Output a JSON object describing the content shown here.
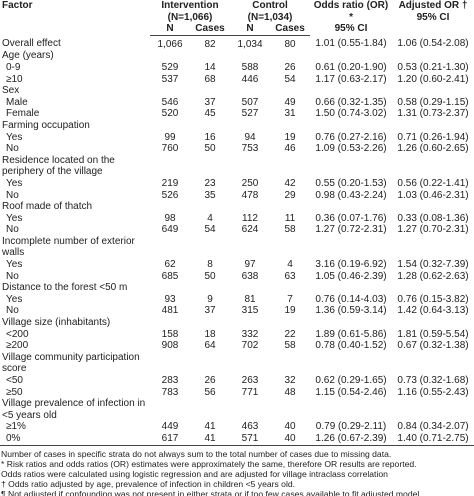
{
  "header": {
    "factor": "Factor",
    "intervention": "Intervention",
    "intervention_n": "(N=1,066)",
    "control": "Control",
    "control_n": "(N=1,034)",
    "or": "Odds ratio (OR) *",
    "or_ci": "95% CI",
    "adj": "Adjusted OR †",
    "adj_ci": "95% CI",
    "sub": [
      "N",
      "Cases",
      "N",
      "Cases"
    ]
  },
  "rows": [
    {
      "label": "Overall effect",
      "cells": [
        "1,066",
        "82",
        "1,034",
        "80",
        "1.01 (0.55-1.84)",
        "1.06 (0.54-2.08)"
      ]
    },
    {
      "label": "Age (years)"
    },
    {
      "label": "0-9",
      "cells": [
        "529",
        "14",
        "588",
        "26",
        "0.61 (0.20-1.90)",
        "0.53 (0.21-1.30)"
      ]
    },
    {
      "label": "≥10",
      "cells": [
        "537",
        "68",
        "446",
        "54",
        "1.17 (0.63-2.17)",
        "1.20 (0.60-2.41)"
      ]
    },
    {
      "label": "Sex"
    },
    {
      "label": "Male",
      "cells": [
        "546",
        "37",
        "507",
        "49",
        "0.66 (0.32-1.35)",
        "0.58 (0.29-1.15)"
      ]
    },
    {
      "label": "Female",
      "cells": [
        "520",
        "45",
        "527",
        "31",
        "1.50 (0.74-3.02)",
        "1.31 (0.73-2.37)"
      ]
    },
    {
      "label": "Farming occupation"
    },
    {
      "label": "Yes",
      "cells": [
        "99",
        "16",
        "94",
        "19",
        "0.76 (0.27-2.16)",
        "0.71 (0.26-1.94)"
      ]
    },
    {
      "label": "No",
      "cells": [
        "760",
        "50",
        "753",
        "46",
        "1.09 (0.53-2.26)",
        "1.26 (0.60-2.65)"
      ]
    },
    {
      "label": "Residence located on the periphery of the village"
    },
    {
      "label": "Yes",
      "cells": [
        "219",
        "23",
        "250",
        "42",
        "0.55 (0.20-1.53)",
        "0.56 (0.22-1.41)"
      ]
    },
    {
      "label": "No",
      "cells": [
        "526",
        "35",
        "478",
        "29",
        "0.98 (0.43-2.24)",
        "1.03 (0.46-2.31)"
      ]
    },
    {
      "label": "Roof made of thatch"
    },
    {
      "label": "Yes",
      "cells": [
        "98",
        "4",
        "112",
        "11",
        "0.36 (0.07-1.76)",
        "0.33 (0.08-1.36)"
      ]
    },
    {
      "label": "No",
      "cells": [
        "649",
        "54",
        "624",
        "58",
        "1.27 (0.72-2.31)",
        "1.27 (0.70-2.31)"
      ]
    },
    {
      "label": "Incomplete number of exterior walls"
    },
    {
      "label": "Yes",
      "cells": [
        "62",
        "8",
        "97",
        "4",
        "3.16 (0.19-6.92)",
        "1.54 (0.32-7.39)"
      ]
    },
    {
      "label": "No",
      "cells": [
        "685",
        "50",
        "638",
        "63",
        "1.05 (0.46-2.39)",
        "1.28 (0.62-2.63)"
      ]
    },
    {
      "label": "Distance to the forest <50 m"
    },
    {
      "label": "Yes",
      "cells": [
        "93",
        "9",
        "81",
        "7",
        "0.76 (0.14-4.03)",
        "0.76 (0.15-3.82)"
      ]
    },
    {
      "label": "No",
      "cells": [
        "481",
        "37",
        "315",
        "19",
        "1.36 (0.59-3.14)",
        "1.42 (0.64-3.13)"
      ]
    },
    {
      "label": "Village size (inhabitants)"
    },
    {
      "label": "<200",
      "cells": [
        "158",
        "18",
        "332",
        "22",
        "1.89 (0.61-5.86)",
        "1.81 (0.59-5.54)"
      ]
    },
    {
      "label": "≥200",
      "cells": [
        "908",
        "64",
        "702",
        "58",
        "0.78 (0.40-1.52)",
        "0.67 (0.32-1.38)"
      ]
    },
    {
      "label": "Village community participation score"
    },
    {
      "label": "<50",
      "cells": [
        "283",
        "26",
        "263",
        "32",
        "0.62 (0.29-1.65)",
        "0.73 (0.32-1.68)"
      ]
    },
    {
      "label": "≥50",
      "cells": [
        "783",
        "56",
        "771",
        "48",
        "1.15 (0.54-2.46)",
        "1.16 (0.55-2.43)"
      ]
    },
    {
      "label": "Village prevalence of infection in <5 years old"
    },
    {
      "label": "≥1%",
      "cells": [
        "449",
        "41",
        "463",
        "40",
        "0.79 (0.29-2.11)",
        "0.84 (0.34-2.07)"
      ]
    },
    {
      "label": "0%",
      "cells": [
        "617",
        "41",
        "571",
        "40",
        "1.26 (0.67-2.39)",
        "1.40 (0.71-2.75)"
      ]
    }
  ],
  "footnotes": [
    "Number of cases in specific strata do not always sum to the total number of cases due to missing data.",
    "* Risk ratios and odds ratios (OR) estimates were approximately the same, therefore OR results are reported.",
    "Odds ratios were calculated using logistic regression and are adjusted for village intraclass correlation",
    "† Odds ratio adjusted by age, prevalence of infection in children <5 years old.",
    "¶ Not adjusted if confounding was not present in either strata or if too few cases available to fit adjusted model."
  ]
}
